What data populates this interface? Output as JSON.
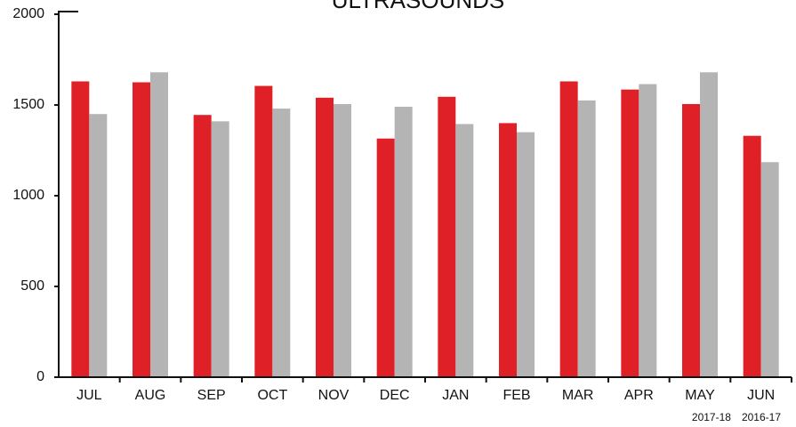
{
  "chart_data": {
    "type": "bar",
    "title": "ULTRASOUNDS",
    "categories": [
      "JUL",
      "AUG",
      "SEP",
      "OCT",
      "NOV",
      "DEC",
      "JAN",
      "FEB",
      "MAR",
      "APR",
      "MAY",
      "JUN"
    ],
    "series": [
      {
        "name": "2017-18",
        "color": "#e02027",
        "values": [
          1630,
          1625,
          1445,
          1605,
          1540,
          1315,
          1545,
          1400,
          1630,
          1585,
          1505,
          1330
        ]
      },
      {
        "name": "2016-17",
        "color": "#b4b4b4",
        "values": [
          1450,
          1680,
          1410,
          1480,
          1505,
          1490,
          1395,
          1350,
          1525,
          1615,
          1680,
          1185
        ]
      }
    ],
    "ylim": [
      0,
      2000
    ],
    "yticks": [
      0,
      500,
      1000,
      1500,
      2000
    ],
    "grid": false,
    "legend": "bottom-right"
  }
}
